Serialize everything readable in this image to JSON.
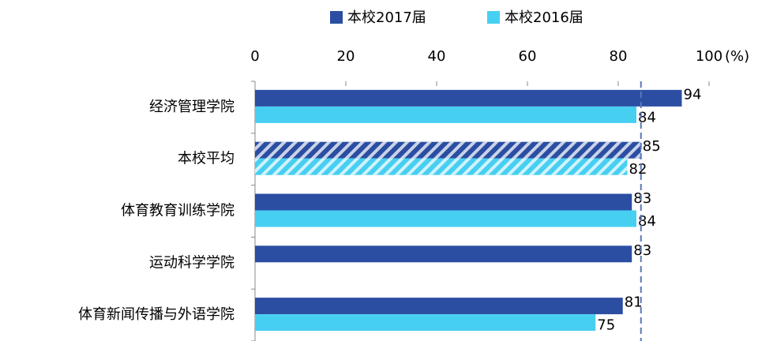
{
  "chart_data": {
    "type": "hbar",
    "categories": [
      "经济管理学院",
      "本校平均",
      "体育教育训练学院",
      "运动科学学院",
      "体育新闻传播与外语学院"
    ],
    "series": [
      {
        "name": "本校2017届",
        "color": "#2b4ea2",
        "values": [
          94,
          85,
          83,
          83,
          81
        ]
      },
      {
        "name": "本校2016届",
        "color": "#47cff2",
        "values": [
          84,
          82,
          84,
          null,
          75
        ]
      }
    ],
    "hatched": [
      false,
      true,
      false,
      false,
      false
    ],
    "xlim": [
      0,
      100
    ],
    "xticks": [
      0,
      20,
      40,
      60,
      80,
      100
    ],
    "x_unit": "(%)",
    "reference_line": {
      "value": 85,
      "color": "#5a78b8"
    },
    "legend": "top"
  }
}
